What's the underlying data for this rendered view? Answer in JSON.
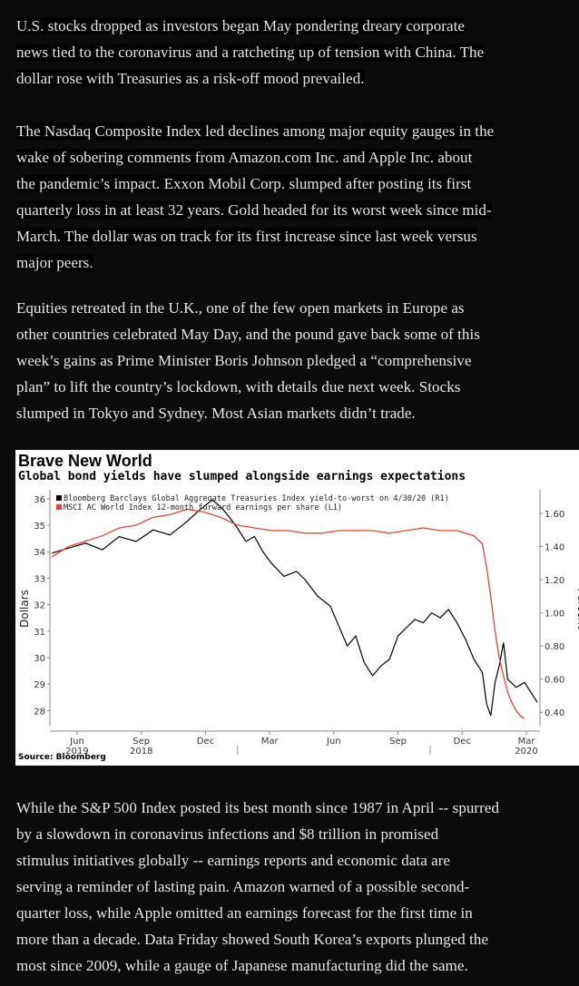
{
  "article": {
    "p1_lines": [
      "U.S. stocks dropped as investors began May pondering dreary corporate",
      "news tied to the coronavirus and a ratcheting up of tension with China. The",
      "dollar rose with Treasuries as a risk-off mood prevailed."
    ],
    "p2_lines": [
      "The Nasdaq Composite Index led declines among major equity gauges in the",
      "wake of sobering comments from Amazon.com Inc. and Apple Inc. about",
      "the pandemic’s impact. Exxon Mobil Corp. slumped after posting its first",
      "quarterly loss in at least 32 years. Gold headed for its worst week since mid-",
      "March. The dollar was on track for its first increase since last week versus",
      "major peers."
    ],
    "p3_lines": [
      "Equities retreated in the U.K., one of the few open markets in Europe as",
      "other countries celebrated May Day, and the pound gave back some of this",
      "week’s gains as Prime Minister Boris Johnson pledged a “comprehensive",
      "plan” to lift the country’s lockdown, with details due next week. Stocks",
      "slumped in Tokyo and Sydney. Most Asian markets didn’t trade."
    ],
    "p4_lines": [
      "While the S&P 500 Index posted its best month since 1987 in April -- spurred",
      "by a slowdown in coronavirus infections and $8 trillion in promised",
      "stimulus initiatives globally -- earnings reports and economic data are",
      "serving a reminder of lasting pain. Amazon warned of a possible second-",
      "quarter loss, while Apple omitted an earnings forecast for the first time in",
      "more than a decade. Data Friday showed South Korea’s exports plunged the",
      "most since 2009, while a gauge of Japanese manufacturing did the same."
    ]
  },
  "chart_data": {
    "type": "line",
    "title": "Brave New World",
    "subtitle": "Global bond yields have slumped alongside earnings expectations",
    "source": "Source: Bloomberg",
    "x_ticks": [
      "Jun",
      "Sep",
      "Dec",
      "Mar",
      "Jun",
      "Sep",
      "Dec",
      "Mar"
    ],
    "x_year_labels": [
      {
        "label": "2018",
        "under": "Sep"
      },
      {
        "label": "2019",
        "under": "Jun"
      },
      {
        "label": "2020",
        "under": "Mar"
      }
    ],
    "left_axis": {
      "label": "Dollars",
      "ticks": [
        36,
        35,
        34,
        33,
        32,
        31,
        30,
        29,
        28
      ],
      "range": [
        27.5,
        36.2
      ]
    },
    "right_axis": {
      "label": "Percent",
      "ticks": [
        "1.60",
        "1.40",
        "1.20",
        "1.00",
        "0.80",
        "0.60",
        "0.40"
      ],
      "range": [
        0.33,
        1.72
      ]
    },
    "legend_position": "top-left",
    "series": [
      {
        "name": "Bloomberg Barclays Global Aggregate Treasuries Index yield-to-worst on 4/30/20 (R1)",
        "axis": "right",
        "color": "#000000",
        "points": [
          [
            0,
            1.36
          ],
          [
            4,
            1.39
          ],
          [
            8,
            1.42
          ],
          [
            12,
            1.38
          ],
          [
            16,
            1.46
          ],
          [
            20,
            1.43
          ],
          [
            24,
            1.5
          ],
          [
            28,
            1.47
          ],
          [
            32,
            1.55
          ],
          [
            35,
            1.62
          ],
          [
            38,
            1.68
          ],
          [
            40,
            1.64
          ],
          [
            42,
            1.58
          ],
          [
            44,
            1.51
          ],
          [
            46,
            1.43
          ],
          [
            48,
            1.46
          ],
          [
            50,
            1.37
          ],
          [
            52,
            1.3
          ],
          [
            55,
            1.22
          ],
          [
            58,
            1.25
          ],
          [
            60,
            1.2
          ],
          [
            63,
            1.1
          ],
          [
            66,
            1.04
          ],
          [
            68,
            0.92
          ],
          [
            70,
            0.8
          ],
          [
            72,
            0.86
          ],
          [
            74,
            0.7
          ],
          [
            76,
            0.62
          ],
          [
            78,
            0.68
          ],
          [
            80,
            0.72
          ],
          [
            82,
            0.86
          ],
          [
            84,
            0.91
          ],
          [
            86,
            0.96
          ],
          [
            88,
            0.94
          ],
          [
            90,
            1.0
          ],
          [
            92,
            0.97
          ],
          [
            94,
            1.02
          ],
          [
            96,
            0.94
          ],
          [
            98,
            0.84
          ],
          [
            100,
            0.72
          ],
          [
            102,
            0.64
          ],
          [
            103,
            0.45
          ],
          [
            104,
            0.38
          ],
          [
            105,
            0.58
          ],
          [
            106,
            0.68
          ],
          [
            107,
            0.82
          ],
          [
            108,
            0.6
          ],
          [
            110,
            0.55
          ],
          [
            112,
            0.58
          ],
          [
            114,
            0.5
          ],
          [
            115,
            0.46
          ]
        ]
      },
      {
        "name": "MSCI AC World Index 12-month forward earnings per share (L1)",
        "axis": "left",
        "color": "#e0463c",
        "points": [
          [
            0,
            33.8
          ],
          [
            4,
            34.2
          ],
          [
            8,
            34.4
          ],
          [
            12,
            34.6
          ],
          [
            16,
            34.9
          ],
          [
            20,
            35.0
          ],
          [
            24,
            35.3
          ],
          [
            28,
            35.4
          ],
          [
            32,
            35.6
          ],
          [
            36,
            35.5
          ],
          [
            40,
            35.3
          ],
          [
            44,
            35.0
          ],
          [
            48,
            34.9
          ],
          [
            52,
            34.8
          ],
          [
            56,
            34.8
          ],
          [
            60,
            34.7
          ],
          [
            64,
            34.7
          ],
          [
            68,
            34.8
          ],
          [
            72,
            34.8
          ],
          [
            76,
            34.8
          ],
          [
            80,
            34.7
          ],
          [
            84,
            34.8
          ],
          [
            88,
            34.9
          ],
          [
            92,
            34.8
          ],
          [
            96,
            34.8
          ],
          [
            100,
            34.6
          ],
          [
            102,
            34.3
          ],
          [
            103,
            33.4
          ],
          [
            104,
            32.3
          ],
          [
            105,
            31.0
          ],
          [
            106,
            30.0
          ],
          [
            107,
            29.3
          ],
          [
            108,
            28.7
          ],
          [
            109,
            28.3
          ],
          [
            110,
            28.0
          ],
          [
            111,
            27.8
          ],
          [
            112,
            27.7
          ]
        ]
      }
    ],
    "x_domain": [
      0,
      115
    ]
  }
}
